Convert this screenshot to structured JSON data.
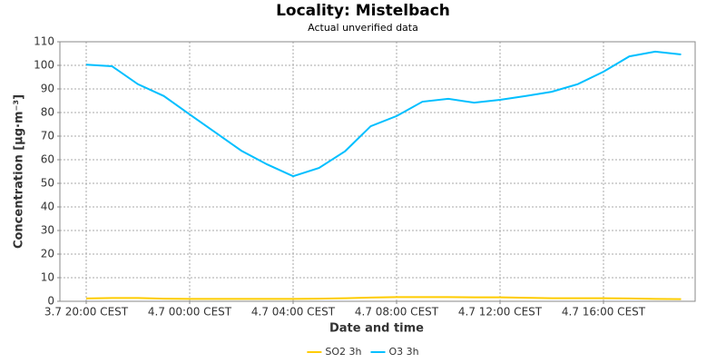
{
  "chart_data": {
    "type": "line",
    "title": "Locality: Mistelbach",
    "subtitle": "Actual unverified data",
    "x_label": "Date and time",
    "y_label": "Concentration [µg·m⁻³]",
    "categories": [
      "3.7 20:00 CEST",
      null,
      null,
      null,
      "4.7 00:00 CEST",
      null,
      null,
      null,
      "4.7 04:00 CEST",
      null,
      null,
      null,
      "4.7 08:00 CEST",
      null,
      null,
      null,
      "4.7 12:00 CEST",
      null,
      null,
      null,
      "4.7 16:00 CEST",
      null,
      null,
      null
    ],
    "series": [
      {
        "name": "SO2 3h",
        "color": "#ffcc00",
        "values": [
          1.2,
          1.4,
          1.4,
          1.1,
          1.0,
          1.0,
          1.0,
          1.0,
          1.0,
          1.1,
          1.3,
          1.6,
          1.8,
          1.8,
          1.8,
          1.7,
          1.7,
          1.5,
          1.3,
          1.3,
          1.3,
          1.2,
          1.0,
          0.9
        ]
      },
      {
        "name": "O3 3h",
        "color": "#00bfff",
        "values": [
          100.3,
          99.6,
          92,
          87,
          79.2,
          71.5,
          63.8,
          58,
          53,
          56.5,
          63.5,
          74.2,
          78.5,
          84.6,
          85.8,
          84.2,
          85.4,
          87,
          88.8,
          92,
          97.3,
          103.8,
          105.8,
          104.6
        ]
      }
    ],
    "ylim": [
      0,
      110
    ],
    "yticks": [
      0,
      10,
      20,
      30,
      40,
      50,
      60,
      70,
      80,
      90,
      100,
      110
    ],
    "grid": true,
    "legend": "bottom"
  }
}
